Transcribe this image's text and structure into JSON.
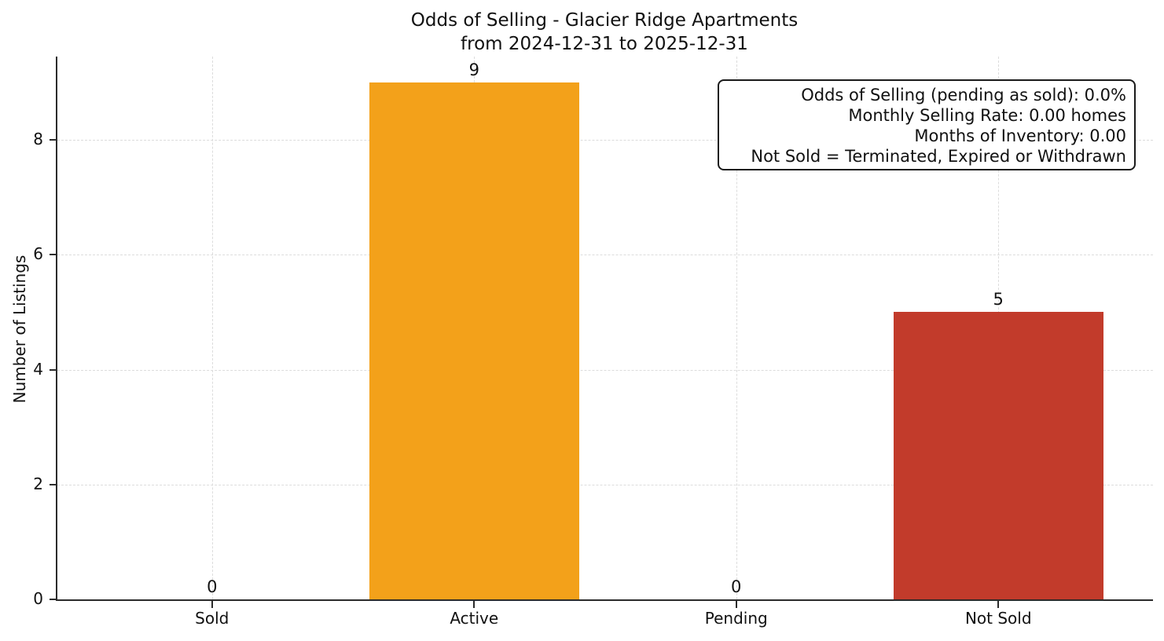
{
  "colors": {
    "background": "#ffffff",
    "text": "#111111",
    "spine": "#2b2b2b",
    "grid": "#dcdcdc",
    "active_bar": "#F3A11A",
    "not_sold_bar": "#C23B2B"
  },
  "chart_data": {
    "type": "bar",
    "title": "Odds of Selling - Glacier Ridge Apartments",
    "subtitle": "from 2024-12-31 to 2025-12-31",
    "categories": [
      "Sold",
      "Active",
      "Pending",
      "Not Sold"
    ],
    "values": [
      0,
      9,
      0,
      5
    ],
    "value_labels": [
      "0",
      "9",
      "0",
      "5"
    ],
    "bar_colors": [
      null,
      "#F3A11A",
      null,
      "#C23B2B"
    ],
    "xlabel": "",
    "ylabel": "Number of Listings",
    "ylim": [
      0,
      9.45
    ],
    "yticks": [
      0,
      2,
      4,
      6,
      8
    ],
    "xlim": [
      -0.59,
      3.59
    ],
    "bar_width": 0.8,
    "grid": {
      "horizontal": true,
      "vertical": true,
      "style": "dashed",
      "color": "#dcdcdc"
    },
    "legend": "none",
    "annotation": {
      "position": "top-right",
      "lines": [
        "Odds of Selling (pending as sold): 0.0%",
        "Monthly Selling Rate: 0.00 homes",
        "Months of Inventory: 0.00",
        "Not Sold = Terminated, Expired or Withdrawn"
      ]
    }
  }
}
